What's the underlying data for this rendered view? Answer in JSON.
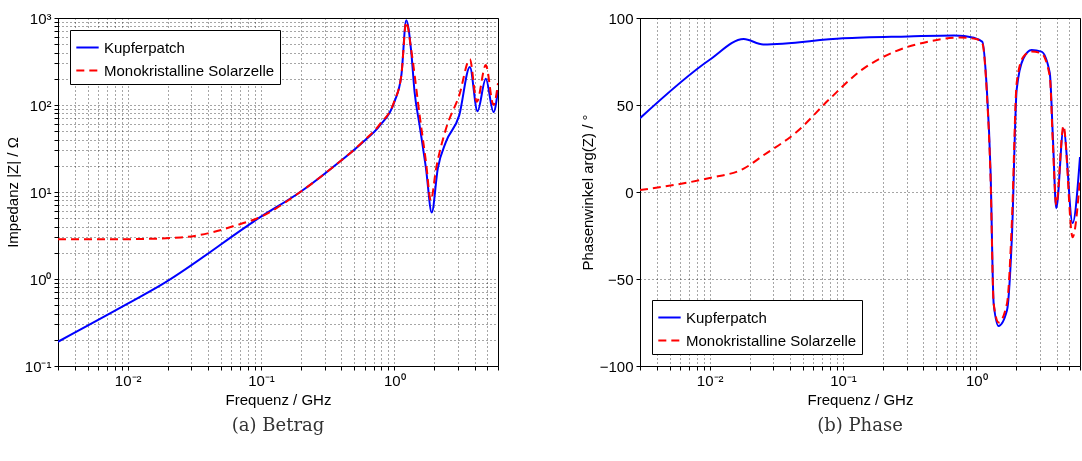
{
  "chart_data": [
    {
      "type": "line",
      "title": "(a) Betrag",
      "xlabel": "Frequenz / GHz",
      "ylabel": "Impedanz |Z| / Ω",
      "log": "xy",
      "grid": true,
      "legend": "top left",
      "xlim": [
        0.003,
        6
      ],
      "ylim": [
        0.1,
        1000
      ],
      "xticks": [
        {
          "value": 0.003,
          "label": null
        },
        {
          "value": 0.004,
          "label": null
        },
        {
          "value": 0.005,
          "label": null
        },
        {
          "value": 0.006,
          "label": null
        },
        {
          "value": 0.007,
          "label": null
        },
        {
          "value": 0.008,
          "label": null
        },
        {
          "value": 0.009,
          "label": null
        },
        {
          "value": 0.01,
          "label": "10⁻²"
        },
        {
          "value": 0.02,
          "label": null
        },
        {
          "value": 0.03,
          "label": null
        },
        {
          "value": 0.04,
          "label": null
        },
        {
          "value": 0.05,
          "label": null
        },
        {
          "value": 0.06,
          "label": null
        },
        {
          "value": 0.07,
          "label": null
        },
        {
          "value": 0.08,
          "label": null
        },
        {
          "value": 0.09,
          "label": null
        },
        {
          "value": 0.1,
          "label": "10⁻¹"
        },
        {
          "value": 0.2,
          "label": null
        },
        {
          "value": 0.3,
          "label": null
        },
        {
          "value": 0.4,
          "label": null
        },
        {
          "value": 0.5,
          "label": null
        },
        {
          "value": 0.6,
          "label": null
        },
        {
          "value": 0.7,
          "label": null
        },
        {
          "value": 0.8,
          "label": null
        },
        {
          "value": 0.9,
          "label": null
        },
        {
          "value": 1,
          "label": "10⁰"
        },
        {
          "value": 2,
          "label": null
        },
        {
          "value": 3,
          "label": null
        },
        {
          "value": 4,
          "label": null
        },
        {
          "value": 5,
          "label": null
        },
        {
          "value": 6,
          "label": null
        }
      ],
      "yticks": [
        {
          "value": 0.1,
          "label": "10⁻¹"
        },
        {
          "value": 0.2,
          "label": null
        },
        {
          "value": 0.3,
          "label": null
        },
        {
          "value": 0.4,
          "label": null
        },
        {
          "value": 0.5,
          "label": null
        },
        {
          "value": 0.6,
          "label": null
        },
        {
          "value": 0.7,
          "label": null
        },
        {
          "value": 0.8,
          "label": null
        },
        {
          "value": 0.9,
          "label": null
        },
        {
          "value": 1,
          "label": "10⁰"
        },
        {
          "value": 2,
          "label": null
        },
        {
          "value": 3,
          "label": null
        },
        {
          "value": 4,
          "label": null
        },
        {
          "value": 5,
          "label": null
        },
        {
          "value": 6,
          "label": null
        },
        {
          "value": 7,
          "label": null
        },
        {
          "value": 8,
          "label": null
        },
        {
          "value": 9,
          "label": null
        },
        {
          "value": 10,
          "label": "10¹"
        },
        {
          "value": 20,
          "label": null
        },
        {
          "value": 30,
          "label": null
        },
        {
          "value": 40,
          "label": null
        },
        {
          "value": 50,
          "label": null
        },
        {
          "value": 60,
          "label": null
        },
        {
          "value": 70,
          "label": null
        },
        {
          "value": 80,
          "label": null
        },
        {
          "value": 90,
          "label": null
        },
        {
          "value": 100,
          "label": "10²"
        },
        {
          "value": 200,
          "label": null
        },
        {
          "value": 300,
          "label": null
        },
        {
          "value": 400,
          "label": null
        },
        {
          "value": 500,
          "label": null
        },
        {
          "value": 600,
          "label": null
        },
        {
          "value": 700,
          "label": null
        },
        {
          "value": 800,
          "label": null
        },
        {
          "value": 900,
          "label": null
        },
        {
          "value": 1000,
          "label": "10³"
        }
      ],
      "series": [
        {
          "name": "Kupferpatch",
          "color": "#0000ff",
          "line_style": "solid",
          "x": [
            0.003,
            0.01,
            0.0177,
            0.1,
            0.197,
            0.348,
            0.583,
            0.778,
            1.0,
            1.13,
            1.23,
            1.34,
            1.42,
            1.55,
            1.73,
            1.91,
            2.12,
            2.44,
            3.07,
            3.69,
            4.21,
            4.86,
            5.55,
            6
          ],
          "values": [
            0.19,
            0.52,
            0.85,
            5.2,
            10,
            19.4,
            37.6,
            58,
            108,
            219,
            940,
            410,
            141,
            58,
            18.6,
            5.8,
            18.6,
            37.6,
            76,
            274,
            85,
            200,
            83,
            148
          ]
        },
        {
          "name": "Monokristalline Solarzelle",
          "color": "#ff0000",
          "line_style": "dashed",
          "x": [
            0.003,
            0.01,
            0.025,
            0.044,
            0.0625,
            0.1,
            0.197,
            0.348,
            0.583,
            0.778,
            1.0,
            1.13,
            1.23,
            1.34,
            1.55,
            1.73,
            1.88,
            2.06,
            2.44,
            3.07,
            3.69,
            4.16,
            4.86,
            5.55,
            6
          ],
          "values": [
            2.86,
            2.87,
            3.0,
            3.47,
            4.06,
            5.2,
            10,
            19.4,
            38,
            60,
            110,
            220,
            900,
            430,
            76,
            22,
            8,
            18.6,
            53,
            129,
            335,
            109,
            288,
            100,
            178
          ]
        }
      ]
    },
    {
      "type": "line",
      "title": "(b) Phase",
      "xlabel": "Frequenz / GHz",
      "ylabel": "Phasenwinkel arg(Z) / °",
      "log": "x",
      "grid": true,
      "legend": "bottom left",
      "xlim": [
        0.003,
        6
      ],
      "ylim": [
        -100,
        100
      ],
      "xticks": [
        {
          "value": 0.003,
          "label": null
        },
        {
          "value": 0.004,
          "label": null
        },
        {
          "value": 0.005,
          "label": null
        },
        {
          "value": 0.006,
          "label": null
        },
        {
          "value": 0.007,
          "label": null
        },
        {
          "value": 0.008,
          "label": null
        },
        {
          "value": 0.009,
          "label": null
        },
        {
          "value": 0.01,
          "label": "10⁻²"
        },
        {
          "value": 0.02,
          "label": null
        },
        {
          "value": 0.03,
          "label": null
        },
        {
          "value": 0.04,
          "label": null
        },
        {
          "value": 0.05,
          "label": null
        },
        {
          "value": 0.06,
          "label": null
        },
        {
          "value": 0.07,
          "label": null
        },
        {
          "value": 0.08,
          "label": null
        },
        {
          "value": 0.09,
          "label": null
        },
        {
          "value": 0.1,
          "label": "10⁻¹"
        },
        {
          "value": 0.2,
          "label": null
        },
        {
          "value": 0.3,
          "label": null
        },
        {
          "value": 0.4,
          "label": null
        },
        {
          "value": 0.5,
          "label": null
        },
        {
          "value": 0.6,
          "label": null
        },
        {
          "value": 0.7,
          "label": null
        },
        {
          "value": 0.8,
          "label": null
        },
        {
          "value": 0.9,
          "label": null
        },
        {
          "value": 1,
          "label": "10⁰"
        },
        {
          "value": 2,
          "label": null
        },
        {
          "value": 3,
          "label": null
        },
        {
          "value": 4,
          "label": null
        },
        {
          "value": 5,
          "label": null
        },
        {
          "value": 6,
          "label": null
        }
      ],
      "yticks": [
        {
          "value": -100,
          "label": "−100"
        },
        {
          "value": -50,
          "label": "−50"
        },
        0,
        50,
        100
      ],
      "series": [
        {
          "name": "Kupferpatch",
          "color": "#0000ff",
          "line_style": "solid",
          "x": [
            0.003,
            0.01,
            0.018,
            0.0252,
            0.1,
            0.308,
            0.684,
            0.962,
            1.11,
            1.2,
            1.28,
            1.35,
            1.47,
            1.7,
            1.85,
            2.01,
            2.26,
            2.6,
            3.08,
            3.56,
            3.76,
            3.98,
            4.51,
            5.28,
            6
          ],
          "values": [
            42.4,
            76,
            87.9,
            84.8,
            88.3,
            89.4,
            90,
            88.6,
            86.4,
            58.9,
            11.6,
            -64,
            -77,
            -68,
            -26,
            58.9,
            76.9,
            81.6,
            80.7,
            68.4,
            30.5,
            -9.3,
            36.2,
            -17.8,
            20.1
          ]
        },
        {
          "name": "Monokristalline Solarzelle",
          "color": "#ff0000",
          "line_style": "dashed",
          "x": [
            0.003,
            0.01,
            0.018,
            0.0252,
            0.0446,
            0.0787,
            0.139,
            0.245,
            0.434,
            0.766,
            1.0,
            1.11,
            1.2,
            1.28,
            1.35,
            1.47,
            1.7,
            1.85,
            2.01,
            2.26,
            2.6,
            3.08,
            3.56,
            3.76,
            3.98,
            4.51,
            5.28,
            6
          ],
          "values": [
            1.1,
            8.1,
            13.4,
            21,
            34.3,
            53.2,
            70.3,
            80.7,
            86.4,
            88.8,
            87.9,
            85.4,
            57,
            7.8,
            -64,
            -75,
            -64,
            -17,
            62.7,
            77.8,
            80.7,
            79.7,
            66.5,
            26.7,
            -7.4,
            38,
            -26,
            7.8
          ]
        }
      ]
    }
  ]
}
